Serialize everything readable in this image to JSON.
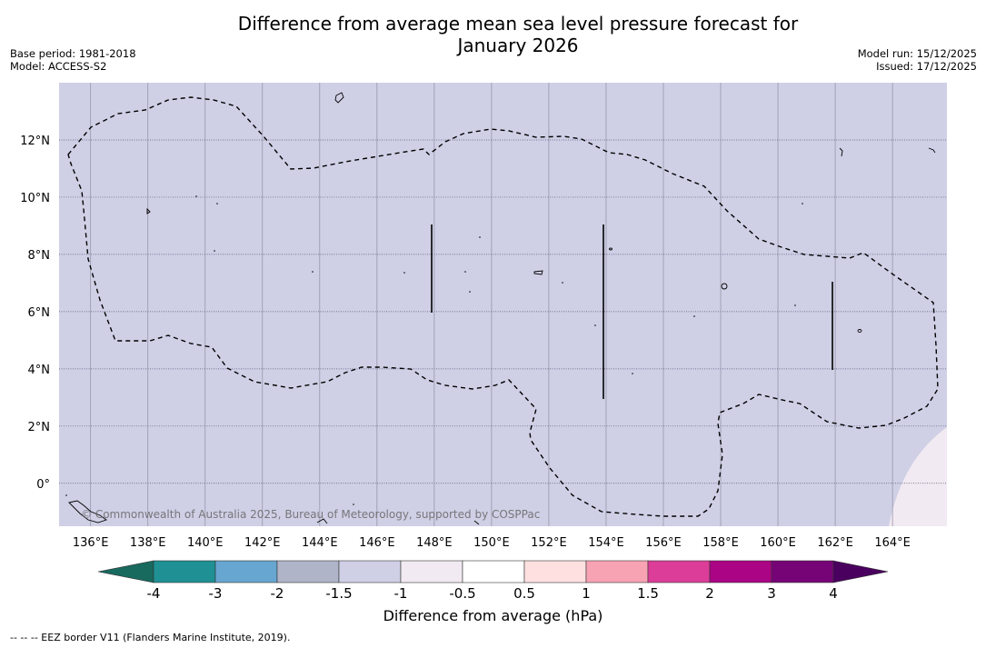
{
  "title_line1": "Difference from average mean sea level pressure forecast for",
  "title_line2": "January 2026",
  "meta": {
    "base_period": "Base period: 1981-2018",
    "model": "Model: ACCESS-S2",
    "model_run": "Model run: 15/12/2025",
    "issued": "Issued: 17/12/2025"
  },
  "map": {
    "lon_labels": [
      "136°E",
      "138°E",
      "140°E",
      "142°E",
      "144°E",
      "146°E",
      "148°E",
      "150°E",
      "152°E",
      "154°E",
      "156°E",
      "158°E",
      "160°E",
      "162°E",
      "164°E"
    ],
    "lat_labels": [
      "12°N",
      "10°N",
      "8°N",
      "6°N",
      "4°N",
      "2°N",
      "0°"
    ],
    "lon_range": [
      134.9,
      165.9
    ],
    "lat_range": [
      -1.5,
      14.0
    ],
    "field_color": "#cfd0e6",
    "positive_color": "#f2eaf2",
    "copyright": "© Commonwealth of Australia 2025, Bureau of Meteorology, supported by COSPPac"
  },
  "colorbar": {
    "ticks": [
      "-4",
      "-3",
      "-2",
      "-1.5",
      "-1",
      "-0.5",
      "0.5",
      "1",
      "1.5",
      "2",
      "3",
      "4"
    ],
    "colors": [
      "#18695e",
      "#1f9094",
      "#66a6d0",
      "#b0b4c8",
      "#cfd0e6",
      "#f2eaf2",
      "#ffffff",
      "#ffe0e0",
      "#f7a3b4",
      "#db3d98",
      "#ab0484",
      "#760477",
      "#4a005e"
    ],
    "label": "Difference from average (hPa)"
  },
  "footnote": "--  --  -- EEZ border V11 (Flanders Marine Institute, 2019)."
}
